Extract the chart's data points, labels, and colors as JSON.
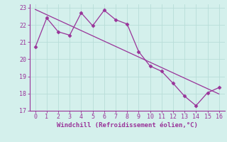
{
  "xlabel": "Windchill (Refroidissement éolien,°C)",
  "x": [
    0,
    1,
    2,
    3,
    4,
    5,
    6,
    7,
    8,
    9,
    10,
    11,
    12,
    13,
    14,
    15,
    16
  ],
  "y_line": [
    20.7,
    22.4,
    21.6,
    21.4,
    22.7,
    21.95,
    22.85,
    22.3,
    22.05,
    20.45,
    19.6,
    19.3,
    18.6,
    17.85,
    17.3,
    18.05,
    18.35
  ],
  "line_color": "#993399",
  "marker": "D",
  "marker_size": 2.5,
  "xlim": [
    -0.5,
    16.5
  ],
  "ylim": [
    17,
    23.2
  ],
  "yticks": [
    17,
    18,
    19,
    20,
    21,
    22,
    23
  ],
  "xticks": [
    0,
    1,
    2,
    3,
    4,
    5,
    6,
    7,
    8,
    9,
    10,
    11,
    12,
    13,
    14,
    15,
    16
  ],
  "background_color": "#d4f0ec",
  "grid_color": "#b8ddd8",
  "axis_color": "#993399",
  "tick_color": "#993399",
  "label_color": "#993399",
  "regression_color": "#993399"
}
